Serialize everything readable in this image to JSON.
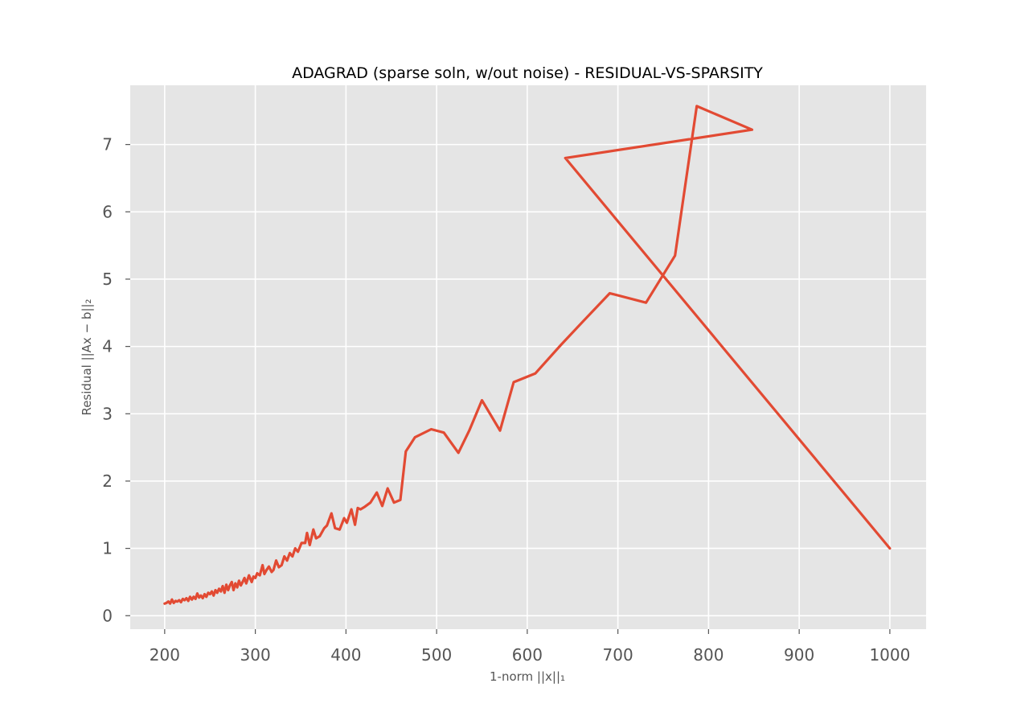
{
  "chart_data": {
    "type": "line",
    "title": "ADAGRAD (sparse soln, w/out noise) - RESIDUAL-VS-SPARSITY",
    "xlabel": "1-norm ||x||₁",
    "ylabel": "Residual ||Ax − b||₂",
    "xlim": [
      162,
      1040
    ],
    "ylim": [
      -0.2,
      7.88
    ],
    "xticks": [
      200,
      300,
      400,
      500,
      600,
      700,
      800,
      900,
      1000
    ],
    "yticks": [
      0,
      1,
      2,
      3,
      4,
      5,
      6,
      7
    ],
    "grid": true,
    "legend": "none",
    "colors": {
      "line": "#e24a33",
      "plot_bg": "#e5e5e5",
      "grid": "#ffffff"
    },
    "series": [
      {
        "x": [
          1000,
          642,
          848,
          787,
          763,
          731,
          691,
          660,
          637,
          609,
          585,
          570,
          550,
          536,
          524,
          508,
          494,
          476,
          466,
          460,
          453,
          446,
          440,
          434,
          427,
          421,
          416,
          413,
          410,
          406,
          401,
          398,
          393,
          388,
          384,
          379,
          376,
          371,
          367,
          364,
          360,
          357,
          355,
          351,
          347,
          344,
          341,
          338,
          335,
          332,
          329,
          326,
          323,
          320,
          318,
          315,
          312,
          310,
          308,
          305,
          302,
          300,
          298,
          296,
          293,
          290,
          288,
          286,
          284,
          282,
          280,
          278,
          276,
          274,
          272,
          270,
          268,
          266,
          264,
          262,
          260,
          258,
          256,
          254,
          252,
          250,
          248,
          246,
          244,
          242,
          240,
          238,
          236,
          234,
          232,
          230,
          228,
          226,
          224,
          222,
          220,
          218,
          216,
          214,
          212,
          210,
          208,
          206,
          204,
          202,
          200
        ],
        "values": [
          1.0,
          6.8,
          7.22,
          7.57,
          5.35,
          4.65,
          4.79,
          4.35,
          4.02,
          3.6,
          3.47,
          2.75,
          3.2,
          2.75,
          2.42,
          2.72,
          2.77,
          2.65,
          2.44,
          1.72,
          1.68,
          1.89,
          1.63,
          1.83,
          1.68,
          1.62,
          1.58,
          1.6,
          1.35,
          1.58,
          1.38,
          1.45,
          1.28,
          1.3,
          1.52,
          1.34,
          1.3,
          1.18,
          1.15,
          1.28,
          1.05,
          1.23,
          1.08,
          1.08,
          0.95,
          1.0,
          0.88,
          0.93,
          0.82,
          0.88,
          0.75,
          0.72,
          0.82,
          0.68,
          0.65,
          0.73,
          0.67,
          0.62,
          0.75,
          0.6,
          0.63,
          0.56,
          0.58,
          0.5,
          0.6,
          0.48,
          0.56,
          0.5,
          0.45,
          0.52,
          0.42,
          0.48,
          0.38,
          0.5,
          0.45,
          0.38,
          0.46,
          0.34,
          0.44,
          0.36,
          0.4,
          0.34,
          0.38,
          0.3,
          0.36,
          0.32,
          0.34,
          0.28,
          0.32,
          0.26,
          0.3,
          0.27,
          0.33,
          0.25,
          0.28,
          0.24,
          0.28,
          0.22,
          0.26,
          0.23,
          0.25,
          0.2,
          0.23,
          0.21,
          0.22,
          0.19,
          0.24,
          0.18,
          0.21,
          0.19,
          0.18
        ]
      }
    ]
  }
}
